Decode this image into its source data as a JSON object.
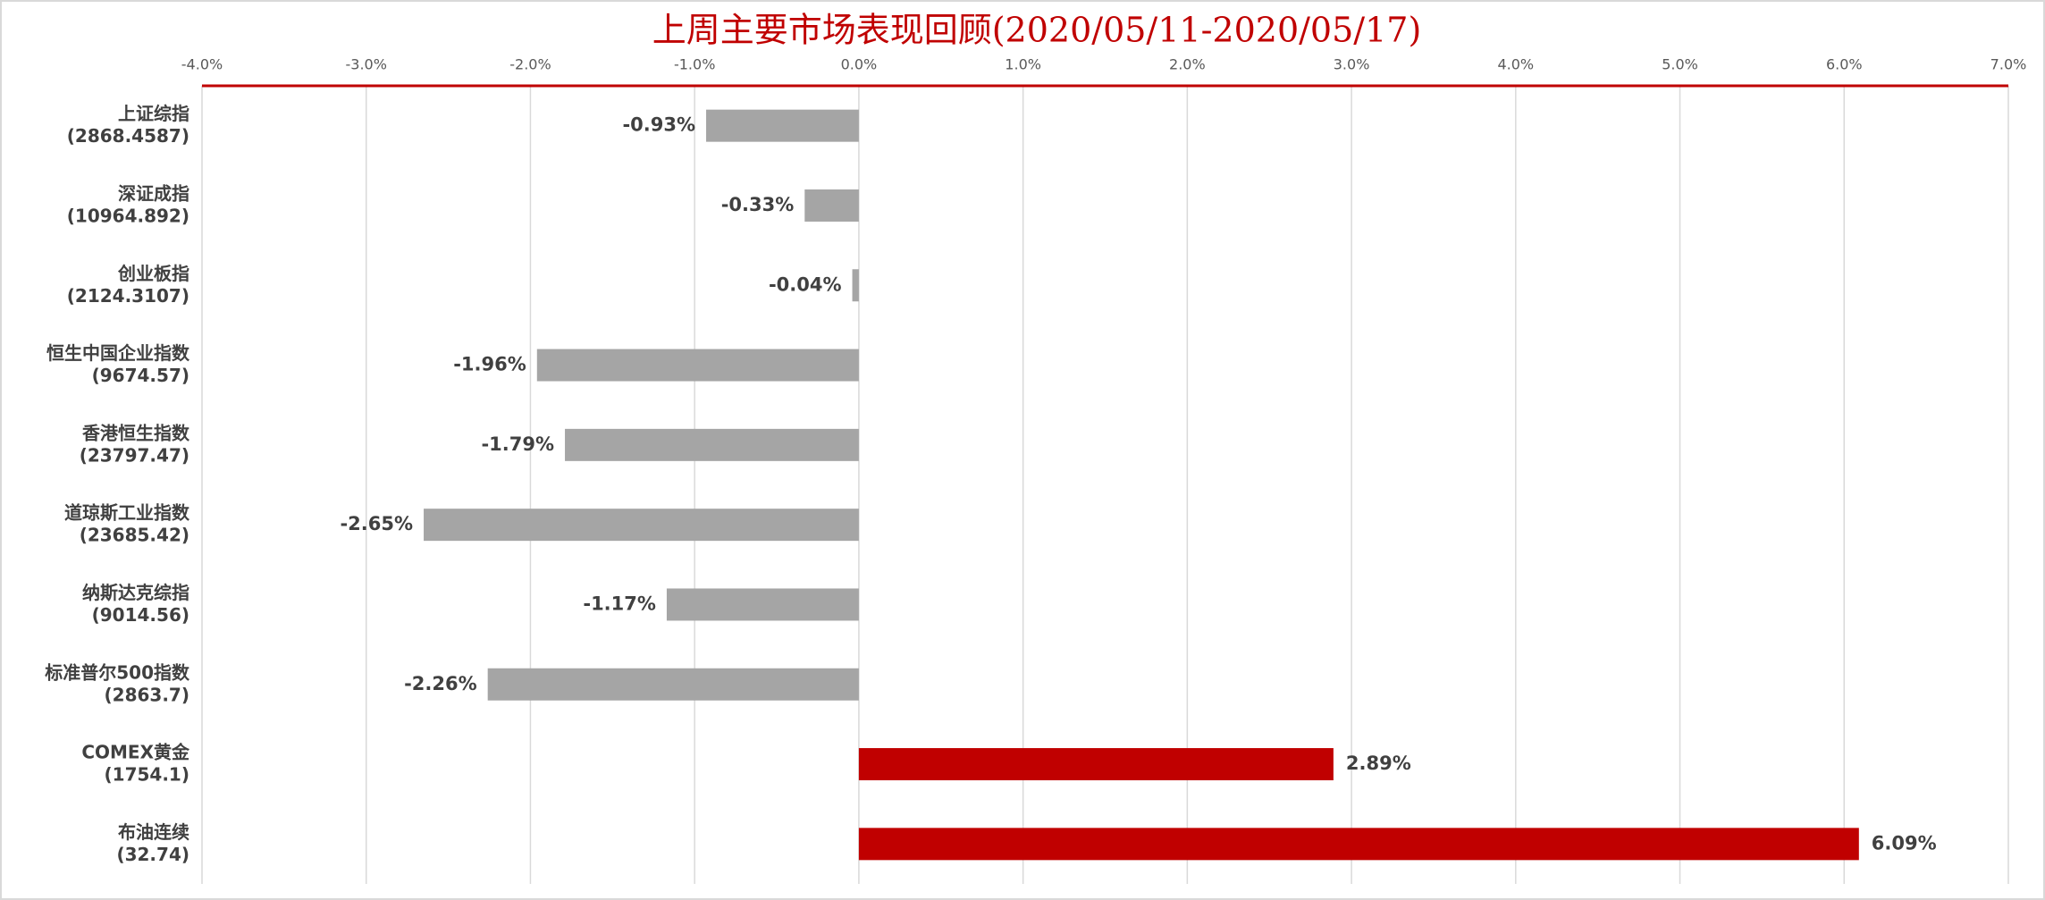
{
  "chart_data": {
    "type": "hbar",
    "title": "上周主要市场表现回顾(2020/05/11-2020/05/17)",
    "categories": [
      [
        "上证综指",
        "(2868.4587)"
      ],
      [
        "深证成指",
        "(10964.892)"
      ],
      [
        "创业板指",
        "(2124.3107)"
      ],
      [
        "恒生中国企业指数",
        "(9674.57)"
      ],
      [
        "香港恒生指数",
        "(23797.47)"
      ],
      [
        "道琼斯工业指数",
        "(23685.42)"
      ],
      [
        "纳斯达克综指",
        "(9014.56)"
      ],
      [
        "标准普尔500指数",
        "(2863.7)"
      ],
      [
        "COMEX黄金",
        "(1754.1)"
      ],
      [
        "布油连续",
        "(32.74)"
      ]
    ],
    "values": [
      -0.93,
      -0.33,
      -0.04,
      -1.96,
      -1.79,
      -2.65,
      -1.17,
      -2.26,
      2.89,
      6.09
    ],
    "value_labels": [
      "-0.93%",
      "-0.33%",
      "-0.04%",
      "-1.96%",
      "-1.79%",
      "-2.65%",
      "-1.17%",
      "-2.26%",
      "2.89%",
      "6.09%"
    ],
    "colors": [
      "#a5a5a5",
      "#a5a5a5",
      "#a5a5a5",
      "#a5a5a5",
      "#a5a5a5",
      "#a5a5a5",
      "#a5a5a5",
      "#a5a5a5",
      "#c00000",
      "#c00000"
    ],
    "xlim": [
      -4,
      7
    ],
    "xticks": [
      {
        "value": -4,
        "label": "-4.0%"
      },
      {
        "value": -3,
        "label": "-3.0%"
      },
      {
        "value": -2,
        "label": "-2.0%"
      },
      {
        "value": -1,
        "label": "-1.0%"
      },
      {
        "value": 0,
        "label": "0.0%"
      },
      {
        "value": 1,
        "label": "1.0%"
      },
      {
        "value": 2,
        "label": "2.0%"
      },
      {
        "value": 3,
        "label": "3.0%"
      },
      {
        "value": 4,
        "label": "4.0%"
      },
      {
        "value": 5,
        "label": "5.0%"
      },
      {
        "value": 6,
        "label": "6.0%"
      },
      {
        "value": 7,
        "label": "7.0%"
      }
    ],
    "grid": true,
    "axis_color": "#c00000"
  }
}
